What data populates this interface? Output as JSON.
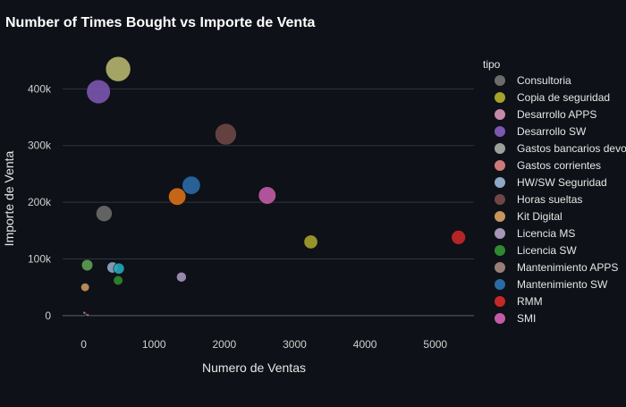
{
  "chart_data": {
    "type": "scatter",
    "title": "Number of Times Bought vs Importe de Venta",
    "xlabel": "Numero de Ventas",
    "ylabel": "Importe de Venta",
    "xlim": [
      -300,
      5550
    ],
    "ylim": [
      -35000,
      470000
    ],
    "x_ticks": [
      0,
      1000,
      2000,
      3000,
      4000,
      5000
    ],
    "x_tick_labels": [
      "0",
      "1000",
      "2000",
      "3000",
      "4000",
      "5000"
    ],
    "y_ticks": [
      0,
      100000,
      200000,
      300000,
      400000
    ],
    "y_tick_labels": [
      "0",
      "100k",
      "200k",
      "300k",
      "400k"
    ],
    "grid": true,
    "legend": {
      "title": "tipo",
      "placement": "right",
      "entries": [
        {
          "name": "Consultoria",
          "color": "#6b6b6b"
        },
        {
          "name": "Copia de seguridad",
          "color": "#a5a32a"
        },
        {
          "name": "Desarrollo APPS",
          "color": "#c48aa8"
        },
        {
          "name": "Desarrollo SW",
          "color": "#7b57b0"
        },
        {
          "name": "Gastos bancarios devo",
          "color": "#9aa29a"
        },
        {
          "name": "Gastos corrientes",
          "color": "#cd7a7a"
        },
        {
          "name": "HW/SW Seguridad",
          "color": "#8fa8c6"
        },
        {
          "name": "Horas sueltas",
          "color": "#6e4745"
        },
        {
          "name": "Kit Digital",
          "color": "#c9955e"
        },
        {
          "name": "Licencia MS",
          "color": "#a596b8"
        },
        {
          "name": "Licencia SW",
          "color": "#2f8a2f"
        },
        {
          "name": "Mantenimiento APPS",
          "color": "#9a7e76"
        },
        {
          "name": "Mantenimiento SW",
          "color": "#2a6aa6"
        },
        {
          "name": "RMM",
          "color": "#c62828"
        },
        {
          "name": "SMI",
          "color": "#c25ba6"
        }
      ]
    },
    "points": [
      {
        "series": "Copia de seguridad",
        "x": 3230,
        "y": 130000,
        "size": 130000,
        "color": "#a5a32a"
      },
      {
        "series": "Consultoria",
        "x": 290,
        "y": 180000,
        "size": 180000,
        "color": "#6b6b6b"
      },
      {
        "series": "Desarrollo APPS",
        "x": 10,
        "y": 5000,
        "size": 5000,
        "color": "#c48aa8"
      },
      {
        "series": "Desarrollo SW",
        "x": 210,
        "y": 395000,
        "size": 395000,
        "color": "#7b57b0"
      },
      {
        "series": "Gastos bancarios devo",
        "x": 40,
        "y": 1500,
        "size": 1500,
        "color": "#9aa29a"
      },
      {
        "series": "Gastos corrientes",
        "x": 60,
        "y": 800,
        "size": 800,
        "color": "#cd7a7a"
      },
      {
        "series": "HW/SW Seguridad",
        "x": 410,
        "y": 85000,
        "size": 85000,
        "color": "#8fa8c6"
      },
      {
        "series": "Horas sueltas",
        "x": 2020,
        "y": 320000,
        "size": 320000,
        "color": "#6e4745"
      },
      {
        "series": "Kit Digital",
        "x": 20,
        "y": 50000,
        "size": 50000,
        "color": "#c9955e"
      },
      {
        "series": "Licencia MS",
        "x": 1390,
        "y": 68000,
        "size": 68000,
        "color": "#a596b8"
      },
      {
        "series": "Licencia SW",
        "x": 490,
        "y": 62000,
        "size": 62000,
        "color": "#2f8a2f"
      },
      {
        "series": "Licencia SW",
        "x": 50,
        "y": 89000,
        "size": 89000,
        "color": "#5f9e52"
      },
      {
        "series": "Mantenimiento APPS",
        "x": 490,
        "y": 435000,
        "size": 435000,
        "color": "#b5b56e"
      },
      {
        "series": "Mantenimiento SW",
        "x": 1530,
        "y": 230000,
        "size": 230000,
        "color": "#2a6aa6"
      },
      {
        "series": "Mantenimiento SW",
        "x": 1330,
        "y": 210000,
        "size": 210000,
        "color": "#d96f17"
      },
      {
        "series": "Mantenimiento SW",
        "x": 500,
        "y": 83000,
        "size": 83000,
        "color": "#22a9b8"
      },
      {
        "series": "RMM",
        "x": 5330,
        "y": 138000,
        "size": 138000,
        "color": "#c62828"
      },
      {
        "series": "SMI",
        "x": 2610,
        "y": 212000,
        "size": 212000,
        "color": "#c25ba6"
      }
    ]
  }
}
